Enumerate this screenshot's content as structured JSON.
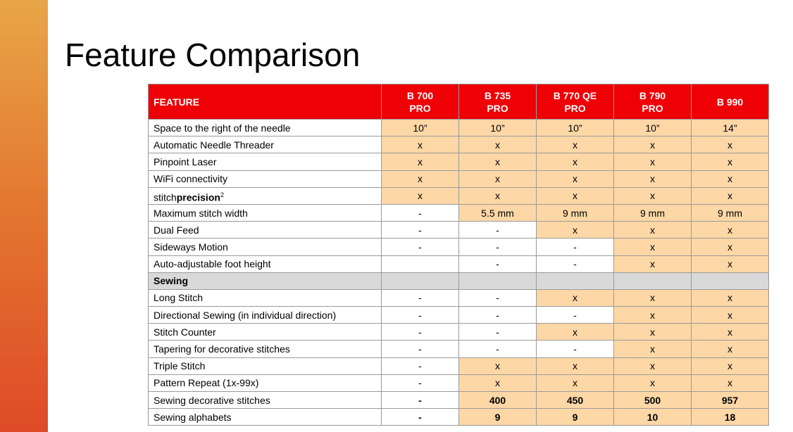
{
  "title": "Feature Comparison",
  "table": {
    "header": [
      [
        "FEATURE"
      ],
      [
        "B 700",
        "PRO"
      ],
      [
        "B 735",
        "PRO"
      ],
      [
        "B 770 QE",
        "PRO"
      ],
      [
        "B 790",
        "PRO"
      ],
      [
        "B 990"
      ]
    ],
    "rows": [
      {
        "feature": "Space to the right of the needle",
        "values": [
          "10”",
          "10”",
          "10”",
          "10”",
          "14”"
        ],
        "highlight": [
          true,
          true,
          true,
          true,
          true
        ]
      },
      {
        "feature": "Automatic Needle Threader",
        "values": [
          "x",
          "x",
          "x",
          "x",
          "x"
        ],
        "highlight": [
          true,
          true,
          true,
          true,
          true
        ]
      },
      {
        "feature": "Pinpoint Laser",
        "values": [
          "x",
          "x",
          "x",
          "x",
          "x"
        ],
        "highlight": [
          true,
          true,
          true,
          true,
          true
        ]
      },
      {
        "feature": "WiFi connectivity",
        "values": [
          "x",
          "x",
          "x",
          "x",
          "x"
        ],
        "highlight": [
          true,
          true,
          true,
          true,
          true
        ]
      },
      {
        "feature": {
          "plain": "stitch",
          "bold": "precision",
          "sup": "2"
        },
        "values": [
          "x",
          "x",
          "x",
          "x",
          "x"
        ],
        "highlight": [
          true,
          true,
          true,
          true,
          true
        ]
      },
      {
        "feature": "Maximum stitch width",
        "values": [
          "-",
          "5.5 mm",
          "9 mm",
          "9 mm",
          "9 mm"
        ],
        "highlight": [
          false,
          true,
          true,
          true,
          true
        ]
      },
      {
        "feature": "Dual Feed",
        "values": [
          "-",
          "-",
          "x",
          "x",
          "x"
        ],
        "highlight": [
          false,
          false,
          true,
          true,
          true
        ]
      },
      {
        "feature": "Sideways Motion",
        "values": [
          "-",
          "-",
          "-",
          "x",
          "x"
        ],
        "highlight": [
          false,
          false,
          false,
          true,
          true
        ]
      },
      {
        "feature": "Auto-adjustable foot height",
        "values": [
          null,
          "-",
          "-",
          "x",
          "x"
        ],
        "highlight": [
          false,
          false,
          false,
          true,
          true
        ]
      },
      {
        "section": "Sewing"
      },
      {
        "feature": "Long Stitch",
        "values": [
          "-",
          "-",
          "x",
          "x",
          "x"
        ],
        "highlight": [
          false,
          false,
          true,
          true,
          true
        ]
      },
      {
        "feature": "Directional Sewing (in individual direction)",
        "values": [
          "-",
          "-",
          "-",
          "x",
          "x"
        ],
        "highlight": [
          false,
          false,
          false,
          true,
          true
        ]
      },
      {
        "feature": "Stitch Counter",
        "values": [
          "-",
          "-",
          "x",
          "x",
          "x"
        ],
        "highlight": [
          false,
          false,
          true,
          true,
          true
        ]
      },
      {
        "feature": "Tapering for decorative stitches",
        "values": [
          "-",
          "-",
          "-",
          "x",
          "x"
        ],
        "highlight": [
          false,
          false,
          false,
          true,
          true
        ]
      },
      {
        "feature": "Triple Stitch",
        "values": [
          "-",
          "x",
          "x",
          "x",
          "x"
        ],
        "highlight": [
          false,
          true,
          true,
          true,
          true
        ]
      },
      {
        "feature": "Pattern Repeat (1x-99x)",
        "values": [
          "-",
          "x",
          "x",
          "x",
          "x"
        ],
        "highlight": [
          false,
          true,
          true,
          true,
          true
        ]
      },
      {
        "feature": "Sewing decorative stitches",
        "values": [
          "-",
          "400",
          "450",
          "500",
          "957"
        ],
        "highlight": [
          false,
          true,
          true,
          true,
          true
        ],
        "bold": true
      },
      {
        "feature": "Sewing alphabets",
        "values": [
          "-",
          "9",
          "9",
          "10",
          "18"
        ],
        "highlight": [
          false,
          true,
          true,
          true,
          true
        ],
        "bold": true
      }
    ]
  }
}
